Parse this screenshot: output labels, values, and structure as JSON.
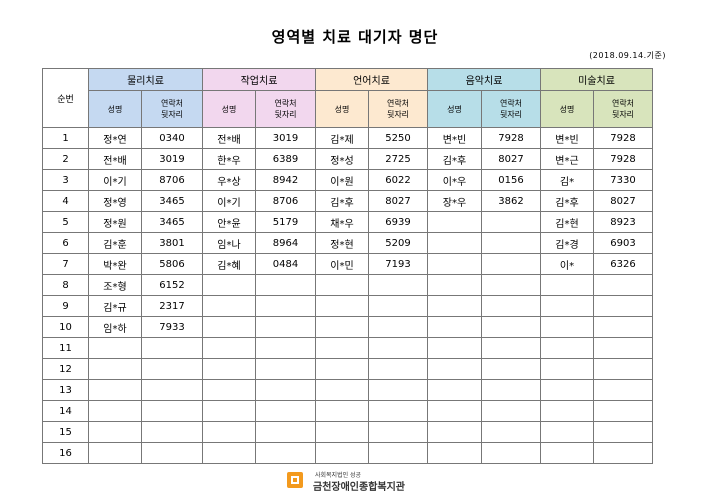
{
  "title": "영역별 치료 대기자 명단",
  "date_note": "(2018.09.14.기준)",
  "seq_header": "순번",
  "groups": [
    {
      "label": "물리치료"
    },
    {
      "label": "작업치료"
    },
    {
      "label": "언어치료"
    },
    {
      "label": "음악치료"
    },
    {
      "label": "미술치료"
    }
  ],
  "sub_headers": {
    "name": "성명",
    "contact_line1": "연락처",
    "contact_line2": "뒷자리"
  },
  "rows": [
    {
      "seq": "1",
      "cells": [
        [
          "정*연",
          "0340"
        ],
        [
          "전*배",
          "3019"
        ],
        [
          "김*제",
          "5250"
        ],
        [
          "변*빈",
          "7928"
        ],
        [
          "변*빈",
          "7928"
        ]
      ]
    },
    {
      "seq": "2",
      "cells": [
        [
          "전*배",
          "3019"
        ],
        [
          "한*우",
          "6389"
        ],
        [
          "정*성",
          "2725"
        ],
        [
          "김*후",
          "8027"
        ],
        [
          "변*근",
          "7928"
        ]
      ]
    },
    {
      "seq": "3",
      "cells": [
        [
          "이*기",
          "8706"
        ],
        [
          "우*상",
          "8942"
        ],
        [
          "이*원",
          "6022"
        ],
        [
          "이*우",
          "0156"
        ],
        [
          "김*",
          "7330"
        ]
      ]
    },
    {
      "seq": "4",
      "cells": [
        [
          "정*영",
          "3465"
        ],
        [
          "이*기",
          "8706"
        ],
        [
          "김*후",
          "8027"
        ],
        [
          "장*우",
          "3862"
        ],
        [
          "김*후",
          "8027"
        ]
      ]
    },
    {
      "seq": "5",
      "cells": [
        [
          "정*원",
          "3465"
        ],
        [
          "안*윤",
          "5179"
        ],
        [
          "채*우",
          "6939"
        ],
        [
          "",
          ""
        ],
        [
          "김*현",
          "8923"
        ]
      ]
    },
    {
      "seq": "6",
      "cells": [
        [
          "김*훈",
          "3801"
        ],
        [
          "임*나",
          "8964"
        ],
        [
          "정*현",
          "5209"
        ],
        [
          "",
          ""
        ],
        [
          "김*경",
          "6903"
        ]
      ]
    },
    {
      "seq": "7",
      "cells": [
        [
          "박*완",
          "5806"
        ],
        [
          "김*혜",
          "0484"
        ],
        [
          "이*민",
          "7193"
        ],
        [
          "",
          ""
        ],
        [
          "이*",
          "6326"
        ]
      ]
    },
    {
      "seq": "8",
      "cells": [
        [
          "조*형",
          "6152"
        ],
        [
          "",
          ""
        ],
        [
          "",
          ""
        ],
        [
          "",
          ""
        ],
        [
          "",
          ""
        ]
      ]
    },
    {
      "seq": "9",
      "cells": [
        [
          "김*규",
          "2317"
        ],
        [
          "",
          ""
        ],
        [
          "",
          ""
        ],
        [
          "",
          ""
        ],
        [
          "",
          ""
        ]
      ]
    },
    {
      "seq": "10",
      "cells": [
        [
          "임*하",
          "7933"
        ],
        [
          "",
          ""
        ],
        [
          "",
          ""
        ],
        [
          "",
          ""
        ],
        [
          "",
          ""
        ]
      ]
    },
    {
      "seq": "11",
      "cells": [
        [
          "",
          ""
        ],
        [
          "",
          ""
        ],
        [
          "",
          ""
        ],
        [
          "",
          ""
        ],
        [
          "",
          ""
        ]
      ]
    },
    {
      "seq": "12",
      "cells": [
        [
          "",
          ""
        ],
        [
          "",
          ""
        ],
        [
          "",
          ""
        ],
        [
          "",
          ""
        ],
        [
          "",
          ""
        ]
      ]
    },
    {
      "seq": "13",
      "cells": [
        [
          "",
          ""
        ],
        [
          "",
          ""
        ],
        [
          "",
          ""
        ],
        [
          "",
          ""
        ],
        [
          "",
          ""
        ]
      ]
    },
    {
      "seq": "14",
      "cells": [
        [
          "",
          ""
        ],
        [
          "",
          ""
        ],
        [
          "",
          ""
        ],
        [
          "",
          ""
        ],
        [
          "",
          ""
        ]
      ]
    },
    {
      "seq": "15",
      "cells": [
        [
          "",
          ""
        ],
        [
          "",
          ""
        ],
        [
          "",
          ""
        ],
        [
          "",
          ""
        ],
        [
          "",
          ""
        ]
      ]
    },
    {
      "seq": "16",
      "cells": [
        [
          "",
          ""
        ],
        [
          "",
          ""
        ],
        [
          "",
          ""
        ],
        [
          "",
          ""
        ],
        [
          "",
          ""
        ]
      ]
    }
  ],
  "footer": {
    "org_sub": "사회복지법인 성공",
    "org_name": "금천장애인종합복지관"
  },
  "colors": {
    "physical": "#c5d9f1",
    "occupational": "#f2d7ee",
    "speech": "#fde9d0",
    "music": "#b7dee8",
    "art": "#d8e4bc",
    "logo_orange": "#f39a1e"
  }
}
